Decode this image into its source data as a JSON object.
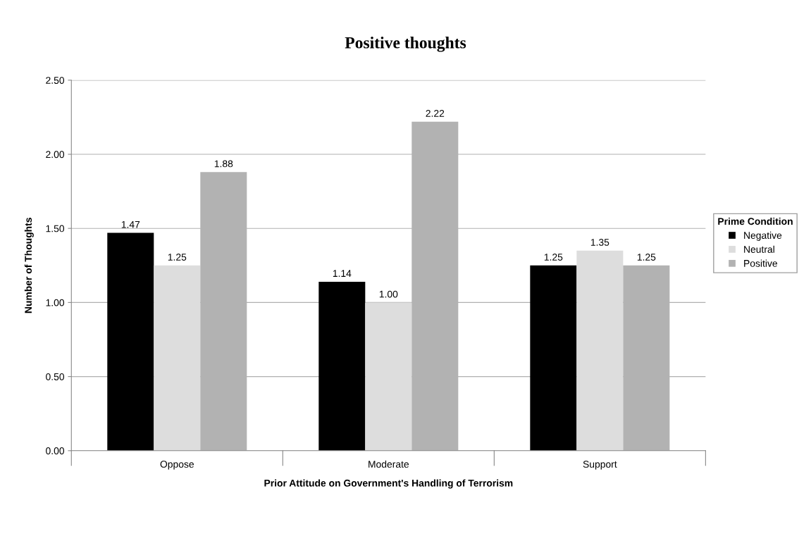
{
  "chart_data": {
    "type": "bar",
    "title": "Positive thoughts",
    "xlabel": "Prior Attitude on Government's Handling of Terrorism",
    "ylabel": "Number of Thoughts",
    "categories": [
      "Oppose",
      "Moderate",
      "Support"
    ],
    "series": [
      {
        "name": "Negative",
        "color": "#000000",
        "values": [
          1.47,
          1.14,
          1.25
        ],
        "value_labels": [
          "1.47",
          "1.14",
          "1.25"
        ]
      },
      {
        "name": "Neutral",
        "color": "#dddddd",
        "values": [
          1.25,
          1.0,
          1.35
        ],
        "value_labels": [
          "1.25",
          "1.00",
          "1.35"
        ]
      },
      {
        "name": "Positive",
        "color": "#b2b2b2",
        "values": [
          1.88,
          2.22,
          1.25
        ],
        "value_labels": [
          "1.88",
          "2.22",
          "1.25"
        ]
      }
    ],
    "legend_title": "Prime Condition",
    "legend": "right",
    "ylim": [
      0,
      2.5
    ],
    "yticks": [
      {
        "value": 0,
        "label": "0.00"
      },
      {
        "value": 0.5,
        "label": "0.50"
      },
      {
        "value": 1,
        "label": "1.00"
      },
      {
        "value": 1.5,
        "label": "1.50"
      },
      {
        "value": 2,
        "label": "2.00"
      },
      {
        "value": 2.5,
        "label": "2.50"
      }
    ],
    "grid": "y"
  }
}
